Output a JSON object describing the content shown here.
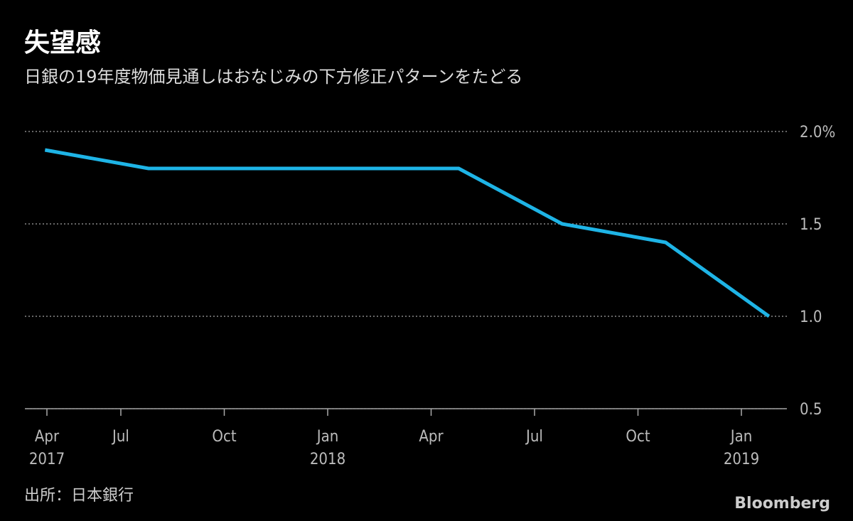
{
  "chart_data": {
    "type": "line",
    "title": "失望感",
    "subtitle": "日銀の19年度物価見通しはおなじみの下方修正パターンをたどる",
    "source": "出所：日本銀行",
    "brand": "Bloomberg",
    "x": [
      "2017-04",
      "2017-07",
      "2018-04",
      "2018-07",
      "2018-10",
      "2019-01"
    ],
    "series": [
      {
        "color": "#1eb4e6",
        "values": [
          1.9,
          1.8,
          1.8,
          1.5,
          1.4,
          1.0
        ]
      }
    ],
    "xlim": [
      "2017-04",
      "2019-02"
    ],
    "xticks": [
      {
        "value": "2017-04",
        "label": "Apr",
        "year": "2017"
      },
      {
        "value": "2017-07",
        "label": "Jul"
      },
      {
        "value": "2017-10",
        "label": "Oct"
      },
      {
        "value": "2018-01",
        "label": "Jan",
        "year": "2018"
      },
      {
        "value": "2018-04",
        "label": "Apr"
      },
      {
        "value": "2018-07",
        "label": "Jul"
      },
      {
        "value": "2018-10",
        "label": "Oct"
      },
      {
        "value": "2019-01",
        "label": "Jan",
        "year": "2019"
      }
    ],
    "ylim": [
      0.5,
      2.0
    ],
    "yticks": [
      0.5,
      {
        "value": 1,
        "label": "1.0"
      },
      1.5,
      {
        "value": 2,
        "label": "2.0%"
      }
    ],
    "grid": true
  }
}
